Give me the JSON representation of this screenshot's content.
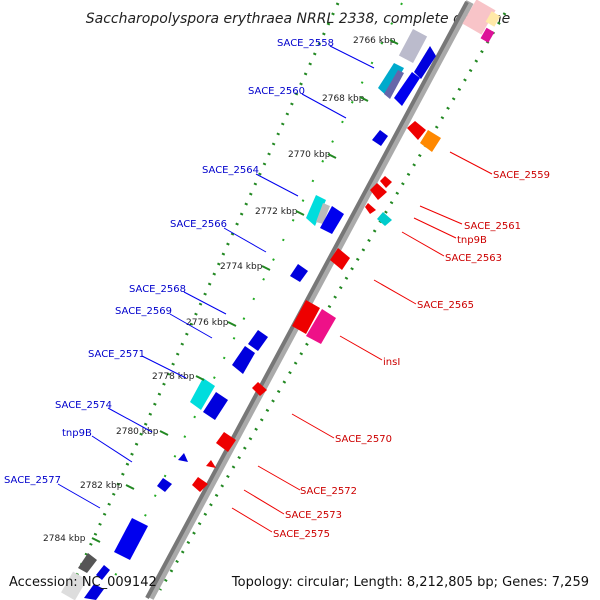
{
  "title": "Saccharopolyspora erythraea NRRL 2338, complete genome",
  "footer": {
    "accession": "Accession: NC_009142",
    "topology": "Topology: circular; Length: 8,212,805 bp; Genes: 7,259"
  },
  "ticks": [
    "2766 kbp",
    "2768 kbp",
    "2770 kbp",
    "2772 kbp",
    "2774 kbp",
    "2776 kbp",
    "2778 kbp",
    "2780 kbp",
    "2782 kbp",
    "2784 kbp"
  ],
  "colors": {
    "forward": "#0000ee",
    "reverse": "#ee0000",
    "forward_label": "#0000cc",
    "reverse_label": "#cc0000",
    "cyan": "#00cccc",
    "magenta": "#ee1188",
    "orange": "#ff8800",
    "gray": "#888888",
    "tick_green": "#228822",
    "axis": "#777777"
  },
  "forward_genes": [
    "SACE_2558",
    "SACE_2560",
    "SACE_2564",
    "SACE_2566",
    "SACE_2568",
    "SACE_2569",
    "SACE_2571",
    "SACE_2574",
    "tnp9B",
    "SACE_2577"
  ],
  "reverse_genes": [
    "SACE_2559",
    "SACE_2561",
    "tnp9B",
    "SACE_2563",
    "SACE_2565",
    "insI",
    "SACE_2570",
    "SACE_2572",
    "SACE_2573",
    "SACE_2575"
  ]
}
